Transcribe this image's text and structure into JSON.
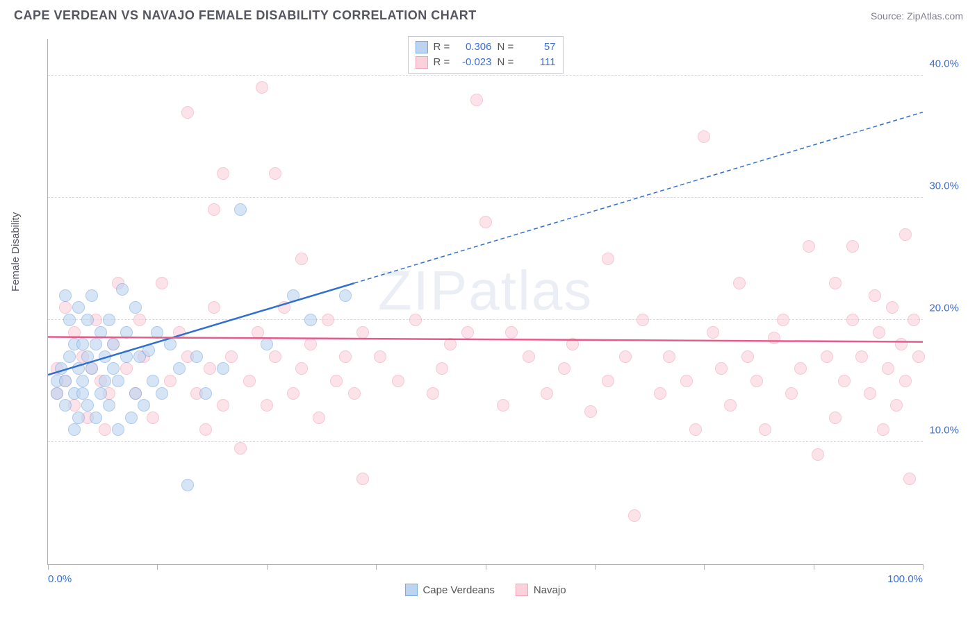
{
  "header": {
    "title": "CAPE VERDEAN VS NAVAJO FEMALE DISABILITY CORRELATION CHART",
    "source_prefix": "Source: ",
    "source_name": "ZipAtlas.com"
  },
  "axes": {
    "y_label": "Female Disability",
    "x_min": 0,
    "x_max": 100,
    "y_min": 0,
    "y_max": 43,
    "y_ticks": [
      10,
      20,
      30,
      40
    ],
    "y_tick_labels": [
      "10.0%",
      "20.0%",
      "30.0%",
      "40.0%"
    ],
    "x_ticks": [
      0,
      12.5,
      25,
      37.5,
      50,
      62.5,
      75,
      87.5,
      100
    ],
    "x_min_label": "0.0%",
    "x_max_label": "100.0%",
    "grid_color": "#d8d8de",
    "axis_color": "#b0b0b8",
    "tick_label_color": "#3a6fd8"
  },
  "series": {
    "cape_verdeans": {
      "label": "Cape Verdeans",
      "fill": "#bcd4f0",
      "stroke": "#7aa8de",
      "line_color": "#2f6fd0",
      "R": "0.306",
      "N": "57",
      "regression": {
        "x1": 0,
        "y1": 15.5,
        "x2_solid": 35,
        "y2_solid": 23,
        "x2": 100,
        "y2": 37
      },
      "points": [
        [
          1,
          14
        ],
        [
          1,
          15
        ],
        [
          1.5,
          16
        ],
        [
          2,
          13
        ],
        [
          2,
          15
        ],
        [
          2,
          22
        ],
        [
          2.5,
          17
        ],
        [
          2.5,
          20
        ],
        [
          3,
          11
        ],
        [
          3,
          14
        ],
        [
          3,
          18
        ],
        [
          3.5,
          12
        ],
        [
          3.5,
          16
        ],
        [
          3.5,
          21
        ],
        [
          4,
          14
        ],
        [
          4,
          15
        ],
        [
          4,
          18
        ],
        [
          4.5,
          13
        ],
        [
          4.5,
          17
        ],
        [
          4.5,
          20
        ],
        [
          5,
          22
        ],
        [
          5,
          16
        ],
        [
          5.5,
          12
        ],
        [
          5.5,
          18
        ],
        [
          6,
          14
        ],
        [
          6,
          19
        ],
        [
          6.5,
          15
        ],
        [
          6.5,
          17
        ],
        [
          7,
          13
        ],
        [
          7,
          20
        ],
        [
          7.5,
          16
        ],
        [
          7.5,
          18
        ],
        [
          8,
          11
        ],
        [
          8,
          15
        ],
        [
          8.5,
          22.5
        ],
        [
          9,
          17
        ],
        [
          9,
          19
        ],
        [
          9.5,
          12
        ],
        [
          10,
          14
        ],
        [
          10,
          21
        ],
        [
          10.5,
          17
        ],
        [
          11,
          13
        ],
        [
          11.5,
          17.5
        ],
        [
          12,
          15
        ],
        [
          12.5,
          19
        ],
        [
          13,
          14
        ],
        [
          14,
          18
        ],
        [
          15,
          16
        ],
        [
          16,
          6.5
        ],
        [
          17,
          17
        ],
        [
          18,
          14
        ],
        [
          20,
          16
        ],
        [
          22,
          29
        ],
        [
          25,
          18
        ],
        [
          28,
          22
        ],
        [
          30,
          20
        ],
        [
          34,
          22
        ]
      ]
    },
    "navajo": {
      "label": "Navajo",
      "fill": "#fbd1db",
      "stroke": "#f0a5b8",
      "line_color": "#e85a8a",
      "R": "-0.023",
      "N": "111",
      "regression": {
        "x1": 0,
        "y1": 18.6,
        "x2": 100,
        "y2": 18.2
      },
      "points": [
        [
          1,
          14
        ],
        [
          1,
          16
        ],
        [
          2,
          15
        ],
        [
          2,
          21
        ],
        [
          3,
          13
        ],
        [
          3,
          19
        ],
        [
          4,
          17
        ],
        [
          4.5,
          12
        ],
        [
          5,
          16
        ],
        [
          5.5,
          20
        ],
        [
          6,
          15
        ],
        [
          6.5,
          11
        ],
        [
          7,
          14
        ],
        [
          7.5,
          18
        ],
        [
          8,
          23
        ],
        [
          9,
          16
        ],
        [
          10,
          14
        ],
        [
          10.5,
          20
        ],
        [
          11,
          17
        ],
        [
          12,
          12
        ],
        [
          13,
          23
        ],
        [
          14,
          15
        ],
        [
          15,
          19
        ],
        [
          16,
          17
        ],
        [
          16,
          37
        ],
        [
          17,
          14
        ],
        [
          18,
          11
        ],
        [
          18.5,
          16
        ],
        [
          19,
          21
        ],
        [
          19,
          29
        ],
        [
          20,
          13
        ],
        [
          20,
          32
        ],
        [
          21,
          17
        ],
        [
          22,
          9.5
        ],
        [
          23,
          15
        ],
        [
          24,
          19
        ],
        [
          24.5,
          39
        ],
        [
          25,
          13
        ],
        [
          26,
          17
        ],
        [
          26,
          32
        ],
        [
          27,
          21
        ],
        [
          28,
          14
        ],
        [
          29,
          16
        ],
        [
          29,
          25
        ],
        [
          30,
          18
        ],
        [
          31,
          12
        ],
        [
          32,
          20
        ],
        [
          33,
          15
        ],
        [
          34,
          17
        ],
        [
          35,
          14
        ],
        [
          36,
          19
        ],
        [
          36,
          7
        ],
        [
          38,
          17
        ],
        [
          40,
          15
        ],
        [
          42,
          20
        ],
        [
          44,
          14
        ],
        [
          45,
          16
        ],
        [
          46,
          18
        ],
        [
          48,
          19
        ],
        [
          49,
          38
        ],
        [
          50,
          28
        ],
        [
          52,
          13
        ],
        [
          53,
          19
        ],
        [
          55,
          17
        ],
        [
          57,
          14
        ],
        [
          59,
          16
        ],
        [
          60,
          18
        ],
        [
          62,
          12.5
        ],
        [
          64,
          25
        ],
        [
          64,
          15
        ],
        [
          66,
          17
        ],
        [
          67,
          4
        ],
        [
          68,
          20
        ],
        [
          70,
          14
        ],
        [
          71,
          17
        ],
        [
          73,
          15
        ],
        [
          74,
          11
        ],
        [
          75,
          35
        ],
        [
          76,
          19
        ],
        [
          77,
          16
        ],
        [
          78,
          13
        ],
        [
          79,
          23
        ],
        [
          80,
          17
        ],
        [
          81,
          15
        ],
        [
          82,
          11
        ],
        [
          83,
          18.5
        ],
        [
          84,
          20
        ],
        [
          85,
          14
        ],
        [
          86,
          16
        ],
        [
          87,
          26
        ],
        [
          88,
          9
        ],
        [
          89,
          17
        ],
        [
          90,
          23
        ],
        [
          90,
          12
        ],
        [
          91,
          15
        ],
        [
          92,
          20
        ],
        [
          92,
          26
        ],
        [
          93,
          17
        ],
        [
          94,
          14
        ],
        [
          94.5,
          22
        ],
        [
          95,
          19
        ],
        [
          95.5,
          11
        ],
        [
          96,
          16
        ],
        [
          96.5,
          21
        ],
        [
          97,
          13
        ],
        [
          97.5,
          18
        ],
        [
          98,
          15
        ],
        [
          98,
          27
        ],
        [
          98.5,
          7
        ],
        [
          99,
          20
        ],
        [
          99.5,
          17
        ]
      ]
    }
  },
  "legend_top": {
    "R_label": "R =",
    "N_label": "N ="
  },
  "watermark": "ZIPatlas",
  "styling": {
    "marker_radius": 9,
    "marker_opacity": 0.6,
    "title_font_size": "18px",
    "label_font_size": "15px",
    "background": "#ffffff"
  }
}
